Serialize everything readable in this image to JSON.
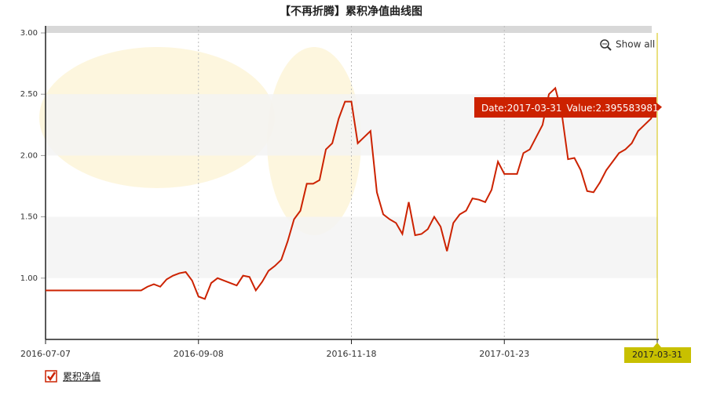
{
  "chart_data": {
    "type": "line",
    "title": "【不再折腾】累积净值曲线图",
    "categories": [
      "2016-07-07",
      null,
      null,
      null,
      null,
      null,
      null,
      null,
      null,
      null,
      null,
      null,
      null,
      null,
      null,
      null,
      null,
      null,
      null,
      null,
      null,
      null,
      null,
      null,
      "2016-09-08",
      null,
      null,
      null,
      null,
      null,
      null,
      null,
      null,
      null,
      null,
      null,
      null,
      null,
      null,
      null,
      null,
      null,
      null,
      null,
      null,
      null,
      null,
      null,
      "2016-11-18",
      null,
      null,
      null,
      null,
      null,
      null,
      null,
      null,
      null,
      null,
      null,
      null,
      null,
      null,
      null,
      null,
      null,
      null,
      null,
      null,
      null,
      null,
      null,
      "2017-01-23",
      null,
      null,
      null,
      null,
      null,
      null,
      null,
      null,
      null,
      null,
      null,
      null,
      null,
      null,
      null,
      null,
      null,
      null,
      null,
      null,
      null,
      null,
      null,
      "2017-03-31"
    ],
    "series": [
      {
        "name": "累积净值",
        "color": "#cc2200",
        "values": [
          0.9,
          0.9,
          0.9,
          0.9,
          0.9,
          0.9,
          0.9,
          0.9,
          0.9,
          0.9,
          0.9,
          0.9,
          0.9,
          0.9,
          0.9,
          0.9,
          0.93,
          0.95,
          0.93,
          0.99,
          1.02,
          1.04,
          1.05,
          0.98,
          0.85,
          0.83,
          0.96,
          1.0,
          0.98,
          0.96,
          0.94,
          1.02,
          1.01,
          0.9,
          0.97,
          1.06,
          1.1,
          1.15,
          1.3,
          1.48,
          1.55,
          1.77,
          1.77,
          1.8,
          2.05,
          2.1,
          2.3,
          2.44,
          2.44,
          2.1,
          2.15,
          2.2,
          1.7,
          1.52,
          1.48,
          1.45,
          1.36,
          1.62,
          1.35,
          1.36,
          1.4,
          1.5,
          1.42,
          1.22,
          1.45,
          1.52,
          1.55,
          1.65,
          1.64,
          1.62,
          1.72,
          1.95,
          1.85,
          1.85,
          1.85,
          2.02,
          2.05,
          2.15,
          2.25,
          2.5,
          2.55,
          2.35,
          1.97,
          1.98,
          1.88,
          1.71,
          1.7,
          1.78,
          1.88,
          1.95,
          2.02,
          2.05,
          2.1,
          2.2,
          2.25,
          2.3,
          2.395583981
        ]
      }
    ],
    "ylim": [
      0.5,
      3
    ],
    "yticks": [
      {
        "value": 1,
        "label": "1.00"
      },
      {
        "value": 1.5,
        "label": "1.50"
      },
      {
        "value": 2,
        "label": "2.00"
      },
      {
        "value": 2.5,
        "label": "2.50"
      },
      {
        "value": 3,
        "label": "3.00"
      }
    ],
    "tooltip": {
      "date_label": "Date:",
      "value_label": "Value:"
    },
    "show_all": "Show all"
  }
}
